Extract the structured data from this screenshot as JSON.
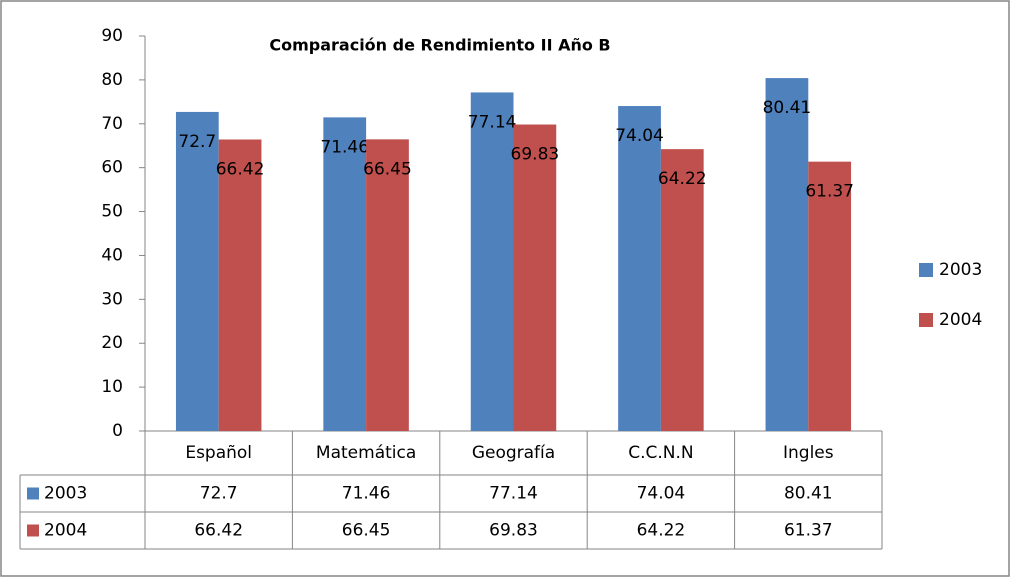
{
  "chart_data": {
    "type": "bar",
    "title": "Comparación de Rendimiento II Año B",
    "categories": [
      "Español",
      "Matemática",
      "Geografía",
      "C.C.N.N",
      "Ingles"
    ],
    "series": [
      {
        "name": "2003",
        "color": "#4f81bd",
        "values": [
          72.7,
          71.46,
          77.14,
          74.04,
          80.41
        ]
      },
      {
        "name": "2004",
        "color": "#c0504d",
        "values": [
          66.42,
          66.45,
          69.83,
          64.22,
          61.37
        ]
      }
    ],
    "ylim": [
      0,
      90
    ],
    "yticks": [
      0,
      10,
      20,
      30,
      40,
      50,
      60,
      70,
      80,
      90
    ],
    "grid": false,
    "legend": "right",
    "data_table": true
  }
}
